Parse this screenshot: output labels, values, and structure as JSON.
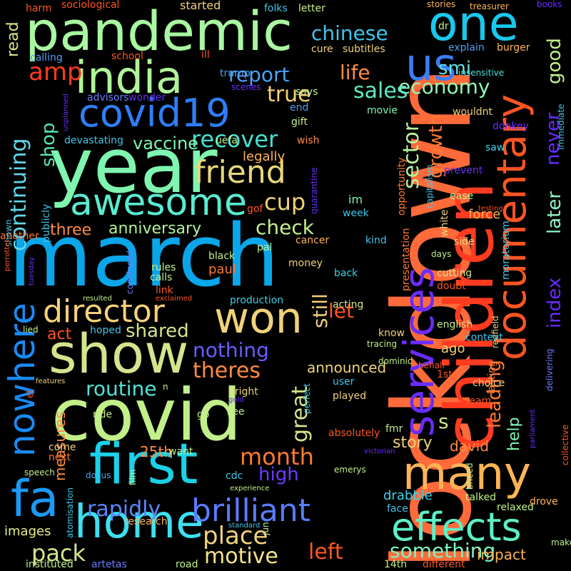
{
  "background": "#000000",
  "words": [
    {
      "text": "lockdown",
      "color": "#ff6a3a"
    },
    {
      "text": "march",
      "color": "#0aa6ea"
    },
    {
      "text": "covid",
      "color": "#c2ef8a"
    },
    {
      "text": "year",
      "color": "#7ff5b0"
    },
    {
      "text": "pandemic",
      "color": "#a9f7a0"
    },
    {
      "text": "children",
      "color": "#ff3b20"
    },
    {
      "text": "show",
      "color": "#d3e58d"
    },
    {
      "text": "first",
      "color": "#1ad1e8"
    },
    {
      "text": "services",
      "color": "#6a2cff"
    },
    {
      "text": "one",
      "color": "#19c8ee"
    },
    {
      "text": "india",
      "color": "#b0f49a"
    },
    {
      "text": "covid19",
      "color": "#2e7ef7"
    },
    {
      "text": "documentary",
      "color": "#ff5522"
    },
    {
      "text": "won",
      "color": "#f0d27a"
    },
    {
      "text": "many",
      "color": "#ffb456"
    },
    {
      "text": "home",
      "color": "#3ddff0"
    },
    {
      "text": "effects",
      "color": "#5df0c6"
    },
    {
      "text": "us",
      "color": "#3a7df2"
    },
    {
      "text": "fa",
      "color": "#1a9af5"
    },
    {
      "text": "awesome",
      "color": "#58ecd0"
    },
    {
      "text": "nowhere",
      "color": "#1a8af5"
    },
    {
      "text": "friend",
      "color": "#e7d87a"
    },
    {
      "text": "director",
      "color": "#f6d07a"
    },
    {
      "text": "brilliant",
      "color": "#5a7cff"
    },
    {
      "text": "amp",
      "color": "#ff3b20"
    },
    {
      "text": "report",
      "color": "#4ba2f6"
    },
    {
      "text": "recover",
      "color": "#49e0d0"
    },
    {
      "text": "true",
      "color": "#f6d07a"
    },
    {
      "text": "economy",
      "color": "#8ff6b4"
    },
    {
      "text": "life",
      "color": "#ff8c40"
    },
    {
      "text": "chinese",
      "color": "#3ec6ea"
    },
    {
      "text": "sales",
      "color": "#61e8c0"
    },
    {
      "text": "smi",
      "color": "#60e0e0"
    },
    {
      "text": "shop",
      "color": "#58e8b0"
    },
    {
      "text": "continuing",
      "color": "#60d8e8"
    },
    {
      "text": "vaccine",
      "color": "#7df5b0"
    },
    {
      "text": "cup",
      "color": "#f0d27a"
    },
    {
      "text": "check",
      "color": "#c2ef8a"
    },
    {
      "text": "three",
      "color": "#ff8c40"
    },
    {
      "text": "anniversary",
      "color": "#b0f49a"
    },
    {
      "text": "nothing",
      "color": "#6a5cff"
    },
    {
      "text": "shared",
      "color": "#d3e58d"
    },
    {
      "text": "theres",
      "color": "#ff8c40"
    },
    {
      "text": "routine",
      "color": "#4fe3d8"
    },
    {
      "text": "month",
      "color": "#ff7a30"
    },
    {
      "text": "high",
      "color": "#6a3cff"
    },
    {
      "text": "rapidly",
      "color": "#5a86ff"
    },
    {
      "text": "place",
      "color": "#f0d27a"
    },
    {
      "text": "motive",
      "color": "#f6e38a"
    },
    {
      "text": "pack",
      "color": "#d3e58d"
    },
    {
      "text": "left",
      "color": "#ff5522"
    },
    {
      "text": "something",
      "color": "#7ff5c0"
    },
    {
      "text": "sector",
      "color": "#b8f09a"
    },
    {
      "text": "growth",
      "color": "#ff7a30"
    },
    {
      "text": "index",
      "color": "#6a2cff"
    },
    {
      "text": "leading",
      "color": "#ff7a30"
    },
    {
      "text": "help",
      "color": "#7ff5b0"
    },
    {
      "text": "later",
      "color": "#8ff6c4"
    },
    {
      "text": "never",
      "color": "#6a2cff"
    },
    {
      "text": "good",
      "color": "#c2ef8a"
    },
    {
      "text": "great",
      "color": "#d3e58d"
    },
    {
      "text": "still",
      "color": "#f0d27a"
    },
    {
      "text": "let",
      "color": "#ff5522"
    },
    {
      "text": "announced",
      "color": "#f0d27a"
    },
    {
      "text": "story",
      "color": "#f0d27a"
    },
    {
      "text": "david",
      "color": "#ff8c40"
    },
    {
      "text": "drabble",
      "color": "#3ed0e8"
    },
    {
      "text": "25th",
      "color": "#ff8c40"
    },
    {
      "text": "measures",
      "color": "#ff8c40"
    },
    {
      "text": "images",
      "color": "#e6f08a"
    },
    {
      "text": "read",
      "color": "#d3e58d"
    },
    {
      "text": "act",
      "color": "#ff5522"
    },
    {
      "text": "paul",
      "color": "#ff7a30"
    },
    {
      "text": "s",
      "color": "#d3e58d"
    },
    {
      "text": "impact",
      "color": "#ffb456"
    },
    {
      "text": "force",
      "color": "#ffb456"
    },
    {
      "text": "ago",
      "color": "#f0d27a"
    },
    {
      "text": "legally",
      "color": "#ffb456"
    },
    {
      "text": "started",
      "color": "#f0d27a"
    },
    {
      "text": "sociological",
      "color": "#ff5522"
    },
    {
      "text": "folks",
      "color": "#3ec6ea"
    },
    {
      "text": "letter",
      "color": "#c2ef8a"
    },
    {
      "text": "harm",
      "color": "#ff5522"
    },
    {
      "text": "stories",
      "color": "#ffb456"
    },
    {
      "text": "treasurer",
      "color": "#ffb456"
    },
    {
      "text": "books",
      "color": "#6a2cff"
    },
    {
      "text": "dr",
      "color": "#c2ef8a"
    },
    {
      "text": "cure",
      "color": "#f0d27a"
    },
    {
      "text": "subtitles",
      "color": "#f0d27a"
    },
    {
      "text": "explain",
      "color": "#4fa0f0"
    },
    {
      "text": "burger",
      "color": "#ffb456"
    },
    {
      "text": "insensitive",
      "color": "#4fe3d8"
    },
    {
      "text": "calling",
      "color": "#4fa0f0"
    },
    {
      "text": "school",
      "color": "#ff5522"
    },
    {
      "text": "ill",
      "color": "#ff5522"
    },
    {
      "text": "trump",
      "color": "#4fa0f0"
    },
    {
      "text": "scenes",
      "color": "#6a2cff"
    },
    {
      "text": "says",
      "color": "#c2ef8a"
    },
    {
      "text": "advisors",
      "color": "#6a7cff"
    },
    {
      "text": "wonder",
      "color": "#6a2cff"
    },
    {
      "text": "end",
      "color": "#4fa0f0"
    },
    {
      "text": "gift",
      "color": "#c2ef8a"
    },
    {
      "text": "movie",
      "color": "#7ff5b0"
    },
    {
      "text": "wouldnt",
      "color": "#f0d27a"
    },
    {
      "text": "unplanned",
      "color": "#6a2cff"
    },
    {
      "text": "devastating",
      "color": "#3ec6ea"
    },
    {
      "text": "uefa",
      "color": "#c2ef8a"
    },
    {
      "text": "wish",
      "color": "#ff8c40"
    },
    {
      "text": "saw",
      "color": "#3ed0e8"
    },
    {
      "text": "donkey",
      "color": "#6a2cff"
    },
    {
      "text": "immediate",
      "color": "#3ec6ea"
    },
    {
      "text": "prevent",
      "color": "#6a2cff"
    },
    {
      "text": "capitalism",
      "color": "#3ec6ea"
    },
    {
      "text": "quarantine",
      "color": "#6a2cff"
    },
    {
      "text": "publicly",
      "color": "#3ec6ea"
    },
    {
      "text": "opportunity",
      "color": "#ff7a30"
    },
    {
      "text": "im",
      "color": "#7ff5b0"
    },
    {
      "text": "week",
      "color": "#3ec6ea"
    },
    {
      "text": "gof",
      "color": "#ff5522"
    },
    {
      "text": "ease",
      "color": "#c2ef8a"
    },
    {
      "text": "testing",
      "color": "#ff5522"
    },
    {
      "text": "shown",
      "color": "#3ec6ea"
    },
    {
      "text": "another",
      "color": "#ff7a30"
    },
    {
      "text": "white",
      "color": "#f0d27a"
    },
    {
      "text": "side",
      "color": "#f0d27a"
    },
    {
      "text": "moratorium",
      "color": "#3ec6ea"
    },
    {
      "text": "presentation",
      "color": "#ff7a30"
    },
    {
      "text": "cancer",
      "color": "#ffb456"
    },
    {
      "text": "kind",
      "color": "#3ec6ea"
    },
    {
      "text": "days",
      "color": "#c2ef8a"
    },
    {
      "text": "black",
      "color": "#c2ef8a"
    },
    {
      "text": "pal",
      "color": "#c2ef8a"
    },
    {
      "text": "perrottet",
      "color": "#ff5522"
    },
    {
      "text": "tuesday",
      "color": "#6a2cff"
    },
    {
      "text": "convinced",
      "color": "#6a7cff"
    },
    {
      "text": "rules",
      "color": "#c2ef8a"
    },
    {
      "text": "calls",
      "color": "#c2ef8a"
    },
    {
      "text": "money",
      "color": "#f0d27a"
    },
    {
      "text": "back",
      "color": "#3ed0e8"
    },
    {
      "text": "cutting",
      "color": "#d3e58d"
    },
    {
      "text": "redfield",
      "color": "#f0d27a"
    },
    {
      "text": "lasting",
      "color": "#ff7a30"
    },
    {
      "text": "link",
      "color": "#ff5522"
    },
    {
      "text": "doubt",
      "color": "#ff5522"
    },
    {
      "text": "resulted",
      "color": "#c2ef8a"
    },
    {
      "text": "exclaimed",
      "color": "#ff5522"
    },
    {
      "text": "production",
      "color": "#3ed0e8"
    },
    {
      "text": "acting",
      "color": "#d3e58d"
    },
    {
      "text": "lied",
      "color": "#c2ef8a"
    },
    {
      "text": "hoped",
      "color": "#3ec6ea"
    },
    {
      "text": "english",
      "color": "#c2ef8a"
    },
    {
      "text": "know",
      "color": "#f0d27a"
    },
    {
      "text": "tracing",
      "color": "#c2ef8a"
    },
    {
      "text": "context",
      "color": "#3ec6ea"
    },
    {
      "text": "dominic",
      "color": "#c2ef8a"
    },
    {
      "text": "behalf",
      "color": "#ff5522"
    },
    {
      "text": "delivering",
      "color": "#6a7cff"
    },
    {
      "text": "1st",
      "color": "#ff5522"
    },
    {
      "text": "choice",
      "color": "#f0d27a"
    },
    {
      "text": "features",
      "color": "#f0d27a"
    },
    {
      "text": "el",
      "color": "#ff5522"
    },
    {
      "text": "n",
      "color": "#c2ef8a"
    },
    {
      "text": "bright",
      "color": "#f0d27a"
    },
    {
      "text": "gold",
      "color": "#6a2cff"
    },
    {
      "text": "perfect",
      "color": "#3ec6ea"
    },
    {
      "text": "user",
      "color": "#3ec6ea"
    },
    {
      "text": "played",
      "color": "#f0d27a"
    },
    {
      "text": "team",
      "color": "#ff5522"
    },
    {
      "text": "ride",
      "color": "#c2ef8a"
    },
    {
      "text": "go",
      "color": "#c2ef8a"
    },
    {
      "text": "see",
      "color": "#c2ef8a"
    },
    {
      "text": "fmr",
      "color": "#c2ef8a"
    },
    {
      "text": "absolutely",
      "color": "#ff5522"
    },
    {
      "text": "victorian",
      "color": "#6a2cff"
    },
    {
      "text": "parliament",
      "color": "#6a2cff"
    },
    {
      "text": "collective",
      "color": "#ff5522"
    },
    {
      "text": "come",
      "color": "#f0d27a"
    },
    {
      "text": "next",
      "color": "#ff7a30"
    },
    {
      "text": "want",
      "color": "#c2ef8a"
    },
    {
      "text": "speech",
      "color": "#c2ef8a"
    },
    {
      "text": "docus",
      "color": "#4fa0f0"
    },
    {
      "text": "film",
      "color": "#c2ef8a"
    },
    {
      "text": "cdc",
      "color": "#3ec6ea"
    },
    {
      "text": "emerys",
      "color": "#c2ef8a"
    },
    {
      "text": "experience",
      "color": "#c2ef8a"
    },
    {
      "text": "bheed",
      "color": "#c2ef8a"
    },
    {
      "text": "atomisation",
      "color": "#3ec6ea"
    },
    {
      "text": "research",
      "color": "#ffb456"
    },
    {
      "text": "standard",
      "color": "#3ec6ea"
    },
    {
      "text": "face",
      "color": "#3ec6ea"
    },
    {
      "text": "talked",
      "color": "#c2ef8a"
    },
    {
      "text": "relaxed",
      "color": "#c2ef8a"
    },
    {
      "text": "drove",
      "color": "#ffb456"
    },
    {
      "text": "make",
      "color": "#c2ef8a"
    },
    {
      "text": "jun",
      "color": "#c2ef8a"
    },
    {
      "text": "instituted",
      "color": "#c2ef8a"
    },
    {
      "text": "artetas",
      "color": "#6a7cff"
    },
    {
      "text": "road",
      "color": "#c2ef8a"
    },
    {
      "text": "14th",
      "color": "#c2ef8a"
    },
    {
      "text": "different",
      "color": "#ff5522"
    }
  ]
}
